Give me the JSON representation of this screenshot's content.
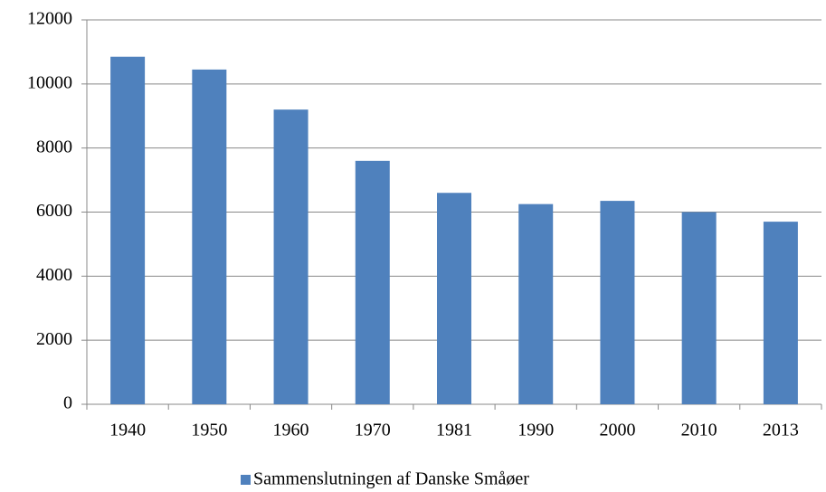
{
  "chart_data": {
    "type": "bar",
    "categories": [
      "1940",
      "1950",
      "1960",
      "1970",
      "1981",
      "1990",
      "2000",
      "2010",
      "2013"
    ],
    "series": [
      {
        "name": "Sammenslutningen af Danske Småøer",
        "color": "#4f81bd",
        "values": [
          10850,
          10450,
          9200,
          7600,
          6600,
          6250,
          6350,
          6000,
          5700
        ]
      }
    ],
    "ylim": [
      0,
      12000
    ],
    "yticks": [
      0,
      2000,
      4000,
      6000,
      8000,
      10000,
      12000
    ],
    "grid": true,
    "legend": "bottom"
  }
}
